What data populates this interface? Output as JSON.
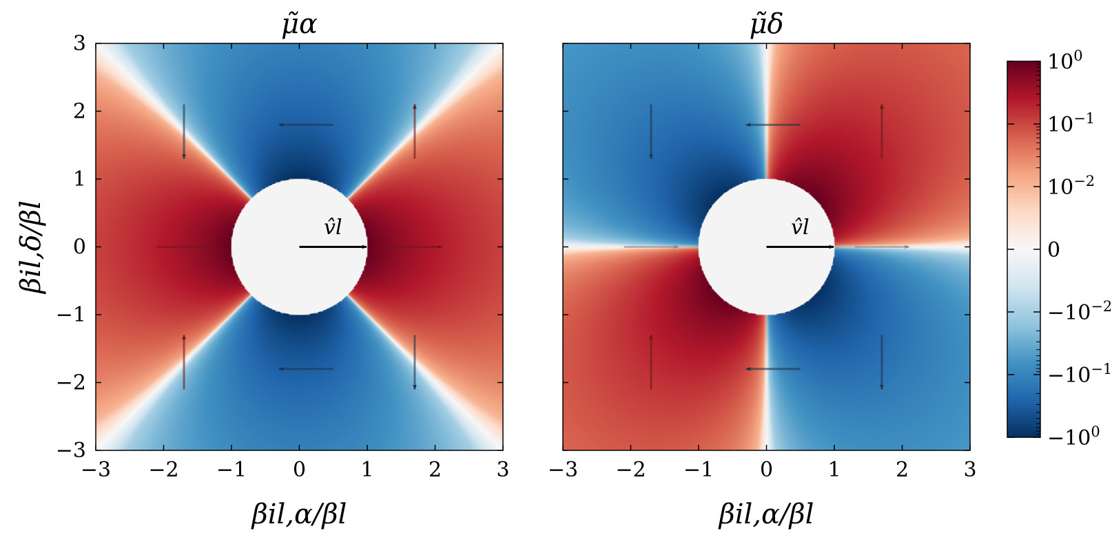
{
  "chart_data": [
    {
      "type": "heatmap",
      "title": "μ̃α",
      "xlabel": "βil,α/βl",
      "ylabel": "βil,δ/βl",
      "xlim": [
        -3,
        3
      ],
      "ylim": [
        -3,
        3
      ],
      "xticks": [
        "−3",
        "−2",
        "−1",
        "0",
        "1",
        "2",
        "3"
      ],
      "yticks": [
        "−3",
        "−2",
        "−1",
        "0",
        "1",
        "2",
        "3"
      ],
      "field": "(x^2 - y^2) / (x^2 + y^2)^2",
      "excluded_region": "unit disk x^2 + y^2 < 1",
      "arrow_label": "v̂l",
      "velocity_arrow": {
        "from": [
          0,
          0
        ],
        "to": [
          1,
          0
        ]
      },
      "flow_arrows": [
        {
          "from": [
            0.5,
            1.8
          ],
          "to": [
            -0.3,
            1.8
          ],
          "sign": "negative"
        },
        {
          "from": [
            0.5,
            -1.8
          ],
          "to": [
            -0.3,
            -1.8
          ],
          "sign": "negative"
        },
        {
          "from": [
            -2.1,
            0
          ],
          "to": [
            -1.3,
            0
          ],
          "sign": "positive"
        },
        {
          "from": [
            1.3,
            0
          ],
          "to": [
            2.1,
            0
          ],
          "sign": "positive"
        },
        {
          "from": [
            -1.7,
            2.1
          ],
          "to": [
            -1.7,
            1.3
          ],
          "sign": "negative"
        },
        {
          "from": [
            1.7,
            1.3
          ],
          "to": [
            1.7,
            2.1
          ],
          "sign": "positive"
        },
        {
          "from": [
            -1.7,
            -2.1
          ],
          "to": [
            -1.7,
            -1.3
          ],
          "sign": "positive"
        },
        {
          "from": [
            1.7,
            -1.3
          ],
          "to": [
            1.7,
            -2.1
          ],
          "sign": "negative"
        }
      ]
    },
    {
      "type": "heatmap",
      "title": "μ̃δ",
      "xlabel": "βil,α/βl",
      "xlim": [
        -3,
        3
      ],
      "ylim": [
        -3,
        3
      ],
      "xticks": [
        "−3",
        "−2",
        "−1",
        "0",
        "1",
        "2",
        "3"
      ],
      "field": "2xy / (x^2 + y^2)^2",
      "excluded_region": "unit disk x^2 + y^2 < 1",
      "arrow_label": "v̂l",
      "velocity_arrow": {
        "from": [
          0,
          0
        ],
        "to": [
          1,
          0
        ]
      },
      "flow_arrows": [
        {
          "from": [
            0.5,
            1.8
          ],
          "to": [
            -0.3,
            1.8
          ],
          "sign": "negative"
        },
        {
          "from": [
            0.5,
            -1.8
          ],
          "to": [
            -0.3,
            -1.8
          ],
          "sign": "negative"
        },
        {
          "from": [
            -2.1,
            0
          ],
          "to": [
            -1.3,
            0
          ],
          "sign": "zero"
        },
        {
          "from": [
            1.3,
            0
          ],
          "to": [
            2.1,
            0
          ],
          "sign": "zero"
        },
        {
          "from": [
            -1.7,
            2.1
          ],
          "to": [
            -1.7,
            1.3
          ],
          "sign": "negative"
        },
        {
          "from": [
            1.7,
            1.3
          ],
          "to": [
            1.7,
            2.1
          ],
          "sign": "positive"
        },
        {
          "from": [
            -1.7,
            -2.1
          ],
          "to": [
            -1.7,
            -1.3
          ],
          "sign": "positive"
        },
        {
          "from": [
            1.7,
            -1.3
          ],
          "to": [
            1.7,
            -2.1
          ],
          "sign": "negative"
        }
      ]
    }
  ],
  "colorbar": {
    "scale": "symlog",
    "colormap": "RdBu_r",
    "limits": [
      -1,
      1
    ],
    "linthresh": 0.01,
    "ticks": [
      {
        "value": 1,
        "base": "10",
        "exp": "0",
        "prefix": ""
      },
      {
        "value": 0.1,
        "base": "10",
        "exp": "−1",
        "prefix": ""
      },
      {
        "value": 0.01,
        "base": "10",
        "exp": "−2",
        "prefix": ""
      },
      {
        "value": 0,
        "base": "0",
        "exp": "",
        "prefix": ""
      },
      {
        "value": -0.01,
        "base": "10",
        "exp": "−2",
        "prefix": "−"
      },
      {
        "value": -0.1,
        "base": "10",
        "exp": "−1",
        "prefix": "−"
      },
      {
        "value": -1,
        "base": "10",
        "exp": "0",
        "prefix": "−"
      }
    ]
  },
  "colors": {
    "positive_strong": "#67001f",
    "negative_strong": "#053061",
    "center": "#f7f7f7",
    "disk": "#f4f4f4"
  }
}
